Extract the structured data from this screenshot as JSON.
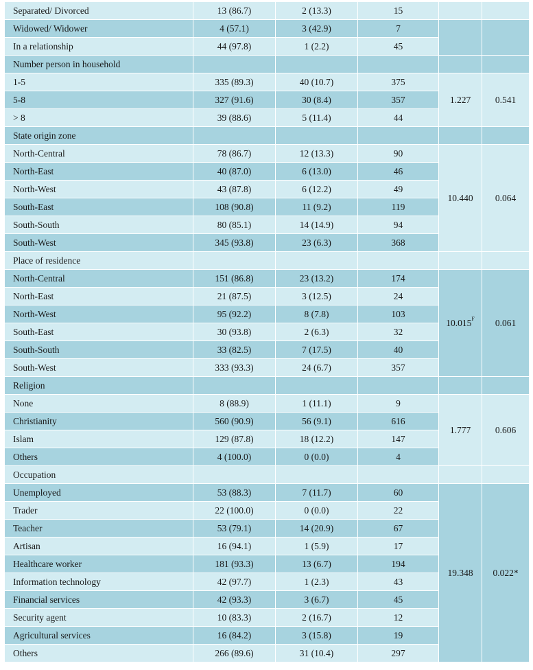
{
  "table": {
    "rows": [
      {
        "label": "Separated/ Divorced",
        "c1": "13 (86.7)",
        "c2": "2 (13.3)",
        "c3": "15"
      },
      {
        "label": "Widowed/ Widower",
        "c1": "4 (57.1)",
        "c2": "3 (42.9)",
        "c3": "7"
      },
      {
        "label": "In a relationship",
        "c1": "44 (97.8)",
        "c2": "1 (2.2)",
        "c3": "45"
      },
      {
        "label": "Number person in household",
        "header": true
      },
      {
        "label": "1-5",
        "c1": "335 (89.3)",
        "c2": "40 (10.7)",
        "c3": "375"
      },
      {
        "label": "5-8",
        "c1": "327 (91.6)",
        "c2": "30 (8.4)",
        "c3": "357"
      },
      {
        "label": "> 8",
        "c1": "39 (88.6)",
        "c2": "5 (11.4)",
        "c3": "44"
      },
      {
        "label": "State origin zone",
        "header": true
      },
      {
        "label": "North-Central",
        "c1": "78 (86.7)",
        "c2": "12 (13.3)",
        "c3": "90"
      },
      {
        "label": "North-East",
        "c1": "40 (87.0)",
        "c2": "6 (13.0)",
        "c3": "46"
      },
      {
        "label": "North-West",
        "c1": "43 (87.8)",
        "c2": "6 (12.2)",
        "c3": "49"
      },
      {
        "label": "South-East",
        "c1": "108 (90.8)",
        "c2": "11 (9.2)",
        "c3": "119"
      },
      {
        "label": "South-South",
        "c1": "80 (85.1)",
        "c2": "14 (14.9)",
        "c3": "94"
      },
      {
        "label": "South-West",
        "c1": "345 (93.8)",
        "c2": "23 (6.3)",
        "c3": "368"
      },
      {
        "label": "Place of residence",
        "header": true
      },
      {
        "label": "North-Central",
        "c1": "151 (86.8)",
        "c2": "23 (13.2)",
        "c3": "174"
      },
      {
        "label": "North-East",
        "c1": "21 (87.5)",
        "c2": "3 (12.5)",
        "c3": "24"
      },
      {
        "label": "North-West",
        "c1": "95 (92.2)",
        "c2": "8 (7.8)",
        "c3": "103"
      },
      {
        "label": "South-East",
        "c1": "30 (93.8)",
        "c2": "2 (6.3)",
        "c3": "32"
      },
      {
        "label": "South-South",
        "c1": "33 (82.5)",
        "c2": "7 (17.5)",
        "c3": "40"
      },
      {
        "label": "South-West",
        "c1": "333 (93.3)",
        "c2": "24 (6.7)",
        "c3": "357"
      },
      {
        "label": "Religion",
        "header": true
      },
      {
        "label": "None",
        "c1": "8 (88.9)",
        "c2": "1 (11.1)",
        "c3": "9"
      },
      {
        "label": "Christianity",
        "c1": "560 (90.9)",
        "c2": "56 (9.1)",
        "c3": "616"
      },
      {
        "label": "Islam",
        "c1": "129 (87.8)",
        "c2": "18 (12.2)",
        "c3": "147"
      },
      {
        "label": "Others",
        "c1": "4 (100.0)",
        "c2": "0 (0.0)",
        "c3": "4"
      },
      {
        "label": "Occupation",
        "header": true
      },
      {
        "label": "Unemployed",
        "c1": "53 (88.3)",
        "c2": "7 (11.7)",
        "c3": "60"
      },
      {
        "label": "Trader",
        "c1": "22 (100.0)",
        "c2": "0 (0.0)",
        "c3": "22"
      },
      {
        "label": "Teacher",
        "c1": "53 (79.1)",
        "c2": "14 (20.9)",
        "c3": "67"
      },
      {
        "label": "Artisan",
        "c1": "16 (94.1)",
        "c2": "1 (5.9)",
        "c3": "17"
      },
      {
        "label": "Healthcare worker",
        "c1": "181 (93.3)",
        "c2": "13 (6.7)",
        "c3": "194"
      },
      {
        "label": "Information technology",
        "c1": "42 (97.7)",
        "c2": "1 (2.3)",
        "c3": "43"
      },
      {
        "label": "Financial services",
        "c1": "42 (93.3)",
        "c2": "3 (6.7)",
        "c3": "45"
      },
      {
        "label": "Security agent",
        "c1": "10 (83.3)",
        "c2": "2 (16.7)",
        "c3": "12"
      },
      {
        "label": "Agricultural services",
        "c1": "16 (84.2)",
        "c2": "3 (15.8)",
        "c3": "19"
      },
      {
        "label": "Others",
        "c1": "266 (89.6)",
        "c2": "31 (10.4)",
        "c3": "297"
      }
    ],
    "stats": [
      {
        "start": 4,
        "end": 6,
        "stat": "1.227",
        "stat_sup": "",
        "p": "0.541"
      },
      {
        "start": 8,
        "end": 13,
        "stat": "10.440",
        "stat_sup": "",
        "p": "0.064"
      },
      {
        "start": 15,
        "end": 20,
        "stat": "10.015",
        "stat_sup": "F",
        "p": "0.061"
      },
      {
        "start": 22,
        "end": 25,
        "stat": "1.777",
        "stat_sup": "",
        "p": "0.606"
      },
      {
        "start": 27,
        "end": 36,
        "stat": "19.348",
        "stat_sup": "",
        "p": "0.022*"
      }
    ],
    "blank_merges": [
      {
        "start": 1,
        "end": 2
      }
    ],
    "colors": {
      "dark": "#a7d3df",
      "light": "#d3ecf2"
    }
  }
}
